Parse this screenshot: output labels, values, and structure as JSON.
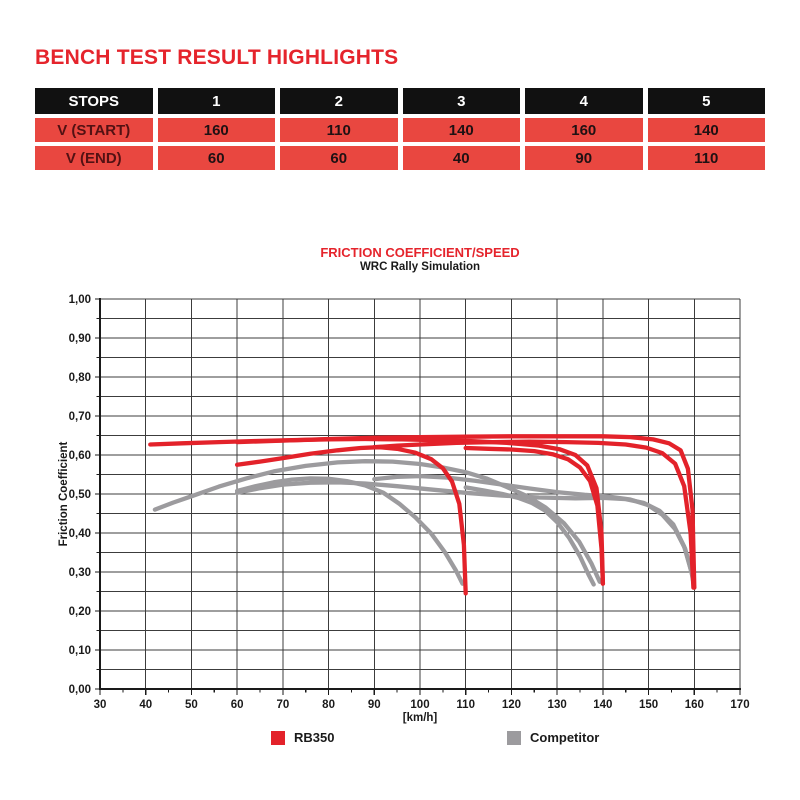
{
  "header": {
    "title": "BENCH TEST RESULT HIGHLIGHTS"
  },
  "table": {
    "columns": [
      "STOPS",
      "1",
      "2",
      "3",
      "4",
      "5"
    ],
    "rows": [
      {
        "label": "V (START)",
        "values": [
          "160",
          "110",
          "140",
          "160",
          "140"
        ]
      },
      {
        "label": "V (END)",
        "values": [
          "60",
          "60",
          "40",
          "90",
          "110"
        ]
      }
    ]
  },
  "colors": {
    "accent_red": "#E5242C",
    "table_row_red": "#E94740",
    "table_header_black": "#111111",
    "table_label_text": "#531113",
    "table_value_text": "#1F1113",
    "grid_line": "#3C3C3C",
    "ink": "#1A1A1A"
  },
  "chart_data": {
    "type": "line",
    "title": "FRICTION COEFFICIENT/SPEED",
    "subtitle": "WRC Rally Simulation",
    "xlabel": "[km/h]",
    "ylabel": "Friction Coefficient",
    "xlim": [
      30,
      170
    ],
    "ylim": [
      0,
      1
    ],
    "grid": true,
    "legend_position": "bottom",
    "x_ticks": [
      30,
      40,
      50,
      60,
      70,
      80,
      90,
      100,
      110,
      120,
      130,
      140,
      150,
      160,
      170
    ],
    "x_minor_tick_step": 5,
    "x_grid_step": 10,
    "y_grid_step": 0.05,
    "y_tick_labels": [
      "1,00",
      "0,90",
      "0,80",
      "0,70",
      "0,60",
      "0,50",
      "0,40",
      "0,30",
      "0,20",
      "0,10",
      "0,00"
    ],
    "series": [
      {
        "name": "RB350",
        "color": "#E3222A",
        "traces": [
          {
            "stop": 1,
            "v_start": 160,
            "v_end": 60,
            "points": [
              [
                60,
                0.633
              ],
              [
                70,
                0.637
              ],
              [
                80,
                0.641
              ],
              [
                90,
                0.644
              ],
              [
                100,
                0.646
              ],
              [
                110,
                0.647
              ],
              [
                120,
                0.648
              ],
              [
                130,
                0.648
              ],
              [
                140,
                0.648
              ],
              [
                146,
                0.646
              ],
              [
                151,
                0.64
              ],
              [
                154.5,
                0.63
              ],
              [
                157,
                0.612
              ],
              [
                158.6,
                0.565
              ],
              [
                159.6,
                0.46
              ],
              [
                160,
                0.26
              ]
            ]
          },
          {
            "stop": 2,
            "v_start": 110,
            "v_end": 60,
            "points": [
              [
                60,
                0.575
              ],
              [
                65,
                0.583
              ],
              [
                70,
                0.592
              ],
              [
                76,
                0.603
              ],
              [
                82,
                0.612
              ],
              [
                87,
                0.618
              ],
              [
                91,
                0.62
              ],
              [
                95,
                0.616
              ],
              [
                99,
                0.606
              ],
              [
                102.5,
                0.589
              ],
              [
                105,
                0.566
              ],
              [
                107,
                0.532
              ],
              [
                108.6,
                0.475
              ],
              [
                109.6,
                0.37
              ],
              [
                110,
                0.245
              ]
            ]
          },
          {
            "stop": 3,
            "v_start": 140,
            "v_end": 40,
            "points": [
              [
                41,
                0.627
              ],
              [
                48,
                0.63
              ],
              [
                56,
                0.633
              ],
              [
                64,
                0.636
              ],
              [
                72,
                0.638
              ],
              [
                80,
                0.64
              ],
              [
                88,
                0.641
              ],
              [
                96,
                0.64
              ],
              [
                104,
                0.638
              ],
              [
                112,
                0.635
              ],
              [
                119,
                0.631
              ],
              [
                126,
                0.624
              ],
              [
                130.5,
                0.615
              ],
              [
                134,
                0.6
              ],
              [
                136.6,
                0.573
              ],
              [
                138.6,
                0.515
              ],
              [
                139.7,
                0.4
              ],
              [
                140,
                0.27
              ]
            ]
          },
          {
            "stop": 4,
            "v_start": 160,
            "v_end": 90,
            "points": [
              [
                90,
                0.62
              ],
              [
                95,
                0.624
              ],
              [
                100,
                0.627
              ],
              [
                108,
                0.631
              ],
              [
                116,
                0.633
              ],
              [
                124,
                0.634
              ],
              [
                132,
                0.633
              ],
              [
                139,
                0.631
              ],
              [
                145,
                0.627
              ],
              [
                149.5,
                0.619
              ],
              [
                153,
                0.605
              ],
              [
                155.8,
                0.578
              ],
              [
                157.8,
                0.52
              ],
              [
                159.2,
                0.4
              ],
              [
                159.8,
                0.26
              ]
            ]
          },
          {
            "stop": 5,
            "v_start": 140,
            "v_end": 110,
            "points": [
              [
                110,
                0.618
              ],
              [
                115,
                0.616
              ],
              [
                120,
                0.614
              ],
              [
                125,
                0.61
              ],
              [
                129,
                0.602
              ],
              [
                132.4,
                0.589
              ],
              [
                135,
                0.568
              ],
              [
                137.2,
                0.533
              ],
              [
                138.8,
                0.47
              ],
              [
                139.7,
                0.36
              ],
              [
                140,
                0.27
              ]
            ]
          }
        ]
      },
      {
        "name": "Competitor",
        "color": "#9C9B9E",
        "traces": [
          {
            "stop": 1,
            "v_start": 160,
            "v_end": 60,
            "points": [
              [
                60,
                0.503
              ],
              [
                65,
                0.515
              ],
              [
                70,
                0.524
              ],
              [
                76,
                0.529
              ],
              [
                82,
                0.53
              ],
              [
                88,
                0.527
              ],
              [
                95,
                0.52
              ],
              [
                102,
                0.512
              ],
              [
                110,
                0.503
              ],
              [
                118,
                0.496
              ],
              [
                126,
                0.491
              ],
              [
                134,
                0.489
              ],
              [
                140,
                0.49
              ],
              [
                145,
                0.487
              ],
              [
                149,
                0.477
              ],
              [
                152.4,
                0.457
              ],
              [
                155.4,
                0.422
              ],
              [
                157.8,
                0.365
              ],
              [
                159.4,
                0.3
              ],
              [
                160,
                0.26
              ]
            ]
          },
          {
            "stop": 2,
            "v_start": 110,
            "v_end": 60,
            "points": [
              [
                60,
                0.508
              ],
              [
                64,
                0.52
              ],
              [
                68,
                0.53
              ],
              [
                72,
                0.537
              ],
              [
                76,
                0.54
              ],
              [
                80,
                0.539
              ],
              [
                84,
                0.533
              ],
              [
                88,
                0.522
              ],
              [
                92,
                0.503
              ],
              [
                95.5,
                0.475
              ],
              [
                99,
                0.44
              ],
              [
                102.5,
                0.398
              ],
              [
                105.5,
                0.35
              ],
              [
                107.8,
                0.305
              ],
              [
                109.3,
                0.27
              ]
            ]
          },
          {
            "stop": 3,
            "v_start": 140,
            "v_end": 40,
            "points": [
              [
                42,
                0.46
              ],
              [
                46,
                0.478
              ],
              [
                50,
                0.494
              ],
              [
                56,
                0.519
              ],
              [
                62,
                0.54
              ],
              [
                68,
                0.558
              ],
              [
                75,
                0.572
              ],
              [
                82,
                0.581
              ],
              [
                88,
                0.584
              ],
              [
                94,
                0.583
              ],
              [
                100,
                0.577
              ],
              [
                105,
                0.568
              ],
              [
                110,
                0.556
              ],
              [
                114.5,
                0.54
              ],
              [
                119,
                0.518
              ],
              [
                123.5,
                0.494
              ],
              [
                127.5,
                0.465
              ],
              [
                131.5,
                0.425
              ],
              [
                134.8,
                0.378
              ],
              [
                137.5,
                0.322
              ],
              [
                139.3,
                0.275
              ]
            ]
          },
          {
            "stop": 4,
            "v_start": 160,
            "v_end": 90,
            "points": [
              [
                90,
                0.538
              ],
              [
                95,
                0.544
              ],
              [
                100,
                0.546
              ],
              [
                106,
                0.542
              ],
              [
                112,
                0.534
              ],
              [
                118,
                0.524
              ],
              [
                124,
                0.514
              ],
              [
                130,
                0.505
              ],
              [
                136,
                0.498
              ],
              [
                141.5,
                0.493
              ],
              [
                146,
                0.486
              ],
              [
                149.8,
                0.472
              ],
              [
                153,
                0.447
              ],
              [
                155.8,
                0.41
              ],
              [
                158,
                0.36
              ],
              [
                159.6,
                0.29
              ]
            ]
          },
          {
            "stop": 5,
            "v_start": 140,
            "v_end": 110,
            "points": [
              [
                110,
                0.517
              ],
              [
                114,
                0.509
              ],
              [
                118,
                0.5
              ],
              [
                121.5,
                0.49
              ],
              [
                124.5,
                0.477
              ],
              [
                127.3,
                0.458
              ],
              [
                130,
                0.428
              ],
              [
                132.6,
                0.388
              ],
              [
                135,
                0.34
              ],
              [
                136.8,
                0.295
              ],
              [
                138,
                0.268
              ]
            ]
          }
        ]
      }
    ]
  }
}
